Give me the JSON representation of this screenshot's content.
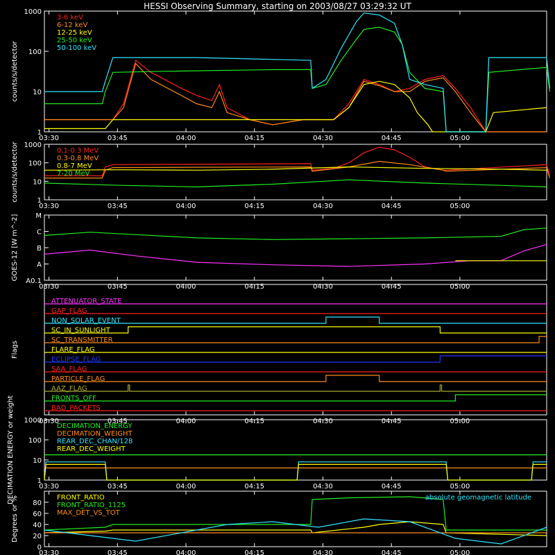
{
  "title": "HESSI Observing Summary, starting on 2003/08/27 03:29:32 UT",
  "time_ticks": [
    "03:30",
    "03:45",
    "04:00",
    "04:15",
    "04:30",
    "04:45",
    "05:00"
  ],
  "colors": {
    "bg": "#000000",
    "axis": "#ffffff",
    "red": "#ff2020",
    "orange": "#ff8c1a",
    "yellow": "#ffff00",
    "green": "#22ee22",
    "cyan": "#33e6ff",
    "magenta": "#ff33ff",
    "blue": "#2233ff",
    "olive": "#aaaa33"
  },
  "chart_data": [
    {
      "id": "panel1",
      "type": "line",
      "ylabel": "counts/s/detector",
      "yscale": "log",
      "ylim": [
        1,
        1000
      ],
      "yticks": [
        "1",
        "10",
        "100",
        "1000"
      ],
      "legend_placement": "top-left",
      "series": [
        {
          "name": "3-6 keV",
          "color": "red",
          "x": [
            0,
            15,
            25,
            45,
            52,
            60,
            70,
            90,
            100,
            110,
            115,
            120,
            135,
            150,
            170,
            175,
            190,
            200,
            210,
            220,
            230,
            240,
            250,
            262,
            270,
            280,
            290,
            300,
            310,
            320,
            330
          ],
          "y": [
            2,
            2,
            2,
            2,
            5,
            60,
            30,
            12,
            8,
            6,
            15,
            4,
            2,
            1.5,
            2,
            2,
            2,
            5,
            20,
            15,
            10,
            12,
            20,
            25,
            12,
            4,
            1,
            1,
            1,
            1,
            1
          ]
        },
        {
          "name": "6-12 keV",
          "color": "orange",
          "x": [
            0,
            15,
            25,
            45,
            52,
            60,
            70,
            90,
            100,
            110,
            115,
            120,
            135,
            150,
            170,
            175,
            190,
            200,
            210,
            220,
            230,
            240,
            250,
            262,
            270,
            280,
            290,
            300,
            310,
            320,
            330
          ],
          "y": [
            2,
            2,
            2,
            2,
            4,
            50,
            20,
            8,
            5,
            4,
            10,
            3,
            2,
            1.5,
            2,
            2,
            2,
            4,
            18,
            14,
            10,
            10,
            18,
            22,
            10,
            3,
            1,
            1,
            1,
            1,
            1
          ]
        },
        {
          "name": "12-25 keV",
          "color": "yellow",
          "x": [
            0,
            40,
            45,
            170,
            175,
            190,
            200,
            210,
            220,
            230,
            240,
            245,
            252,
            255,
            290,
            295,
            330
          ],
          "y": [
            1.2,
            1.2,
            2,
            2,
            2,
            2,
            4,
            15,
            18,
            15,
            7,
            3,
            1.5,
            1,
            1,
            3,
            4
          ]
        },
        {
          "name": "25-50 keV",
          "color": "green",
          "x": [
            0,
            38,
            40,
            45,
            80,
            150,
            175,
            176,
            185,
            195,
            205,
            210,
            220,
            230,
            235,
            240,
            250,
            262,
            264,
            290,
            292,
            330,
            332
          ],
          "y": [
            5,
            5,
            10,
            30,
            32,
            35,
            35,
            12,
            15,
            60,
            200,
            350,
            400,
            300,
            150,
            30,
            12,
            10,
            1,
            1,
            30,
            40,
            10
          ]
        },
        {
          "name": "50-100 keV",
          "color": "cyan",
          "x": [
            0,
            38,
            40,
            45,
            100,
            175,
            176,
            185,
            195,
            205,
            210,
            220,
            230,
            235,
            240,
            250,
            262,
            264,
            290,
            292,
            330,
            332
          ],
          "y": [
            10,
            10,
            18,
            70,
            70,
            60,
            12,
            20,
            120,
            550,
            900,
            800,
            500,
            150,
            20,
            15,
            12,
            1,
            1,
            70,
            70,
            12
          ]
        }
      ]
    },
    {
      "id": "panel2",
      "type": "line",
      "ylabel": "counts/s/detector",
      "yscale": "log",
      "ylim": [
        1,
        1000
      ],
      "yticks": [
        "1",
        "10",
        "100",
        "1000"
      ],
      "legend_placement": "top-left",
      "series": [
        {
          "name": "0.1-0.3 MeV",
          "color": "red",
          "x": [
            0,
            38,
            40,
            45,
            175,
            176,
            190,
            200,
            210,
            220,
            230,
            240,
            250,
            262,
            264,
            330,
            332
          ],
          "y": [
            20,
            20,
            60,
            80,
            90,
            40,
            50,
            100,
            350,
            700,
            500,
            200,
            60,
            40,
            40,
            80,
            20
          ]
        },
        {
          "name": "0.3-0.8 MeV",
          "color": "orange",
          "x": [
            0,
            38,
            40,
            45,
            175,
            176,
            200,
            220,
            240,
            262,
            264,
            330,
            332
          ],
          "y": [
            15,
            15,
            40,
            55,
            60,
            35,
            60,
            120,
            80,
            40,
            35,
            55,
            15
          ]
        },
        {
          "name": "0.8-7 MeV",
          "color": "yellow",
          "x": [
            0,
            50,
            100,
            150,
            200,
            250,
            300,
            330
          ],
          "y": [
            40,
            42,
            40,
            45,
            60,
            50,
            45,
            40
          ]
        },
        {
          "name": "7-20 MeV",
          "color": "green",
          "x": [
            0,
            50,
            100,
            150,
            200,
            250,
            300,
            330
          ],
          "y": [
            8,
            6,
            5,
            7,
            12,
            8,
            6,
            5
          ]
        }
      ]
    },
    {
      "id": "panel3",
      "type": "line",
      "ylabel": "GOES-12 [W m^-2]",
      "ylim_levels": [
        0,
        4
      ],
      "yticks": [
        "A0.1",
        "A",
        "B",
        "C",
        "M"
      ],
      "series": [
        {
          "name": "",
          "color": "green",
          "x": [
            0,
            30,
            60,
            100,
            150,
            200,
            250,
            300,
            315,
            330
          ],
          "y": [
            2.75,
            2.95,
            2.8,
            2.6,
            2.5,
            2.55,
            2.6,
            2.7,
            3.1,
            3.2
          ]
        },
        {
          "name": "",
          "color": "magenta",
          "x": [
            0,
            30,
            60,
            100,
            150,
            200,
            250,
            280,
            300,
            315,
            330
          ],
          "y": [
            1.6,
            1.85,
            1.5,
            1.1,
            0.95,
            0.85,
            1.0,
            1.2,
            1.2,
            1.8,
            2.2
          ]
        },
        {
          "name": "",
          "color": "yellow",
          "x": [
            270,
            330
          ],
          "y": [
            1.2,
            1.2
          ]
        }
      ]
    },
    {
      "id": "panel4",
      "type": "flags",
      "ylabel": "Flags",
      "flags": [
        {
          "name": "ATTENUATOR_STATE",
          "color": "magenta",
          "transitions": []
        },
        {
          "name": "GAP_FLAG",
          "color": "red",
          "transitions": []
        },
        {
          "name": "NON_SOLAR_EVENT",
          "color": "cyan",
          "transitions": [
            [
              185,
              1
            ],
            [
              220,
              0
            ]
          ]
        },
        {
          "name": "SC_IN_SUNLIGHT",
          "color": "yellow",
          "transitions": [
            [
              55,
              1
            ],
            [
              260,
              0
            ]
          ]
        },
        {
          "name": "SC_TRANSMITTER",
          "color": "orange",
          "transitions": [
            [
              325,
              1
            ]
          ]
        },
        {
          "name": "FLARE_FLAG",
          "color": "yellow",
          "transitions": []
        },
        {
          "name": "ECLIPSE_FLAG",
          "color": "blue",
          "transitions": [
            [
              55,
              0
            ],
            [
              260,
              1
            ]
          ]
        },
        {
          "name": "SAA_FLAG",
          "color": "red",
          "transitions": []
        },
        {
          "name": "PARTICLE_FLAG",
          "color": "orange",
          "transitions": [
            [
              185,
              1
            ],
            [
              220,
              0
            ]
          ]
        },
        {
          "name": "AAZ_FLAG",
          "color": "olive",
          "transitions": [
            [
              55,
              1
            ],
            [
              56,
              0
            ],
            [
              260,
              1
            ],
            [
              261,
              0
            ]
          ]
        },
        {
          "name": "FRONTS_OFF",
          "color": "green",
          "transitions": [
            [
              40,
              0
            ],
            [
              270,
              1
            ]
          ]
        },
        {
          "name": "BAD_PACKETS",
          "color": "red",
          "transitions": []
        }
      ]
    },
    {
      "id": "panel5",
      "type": "line",
      "ylabel": "DECIMATION ENERGY or weight",
      "yscale": "log",
      "ylim": [
        1,
        1000
      ],
      "yticks": [
        "1",
        "10",
        "100",
        "1000"
      ],
      "legend_placement": "top-left",
      "series": [
        {
          "name": "DECIMATION_ENERGY",
          "color": "green",
          "x": [
            0,
            330
          ],
          "y": [
            18,
            18
          ]
        },
        {
          "name": "DECIMATION_WEIGHT",
          "color": "orange",
          "x": [
            0,
            330
          ],
          "y": [
            4,
            4
          ]
        },
        {
          "name": "REAR_DEC_CHAN/128",
          "color": "cyan",
          "x": [
            0,
            1,
            40,
            41,
            166,
            167,
            264,
            265,
            320,
            321,
            330
          ],
          "y": [
            1,
            8,
            8,
            1,
            1,
            8,
            8,
            1,
            1,
            8,
            8
          ]
        },
        {
          "name": "REAR_DEC_WEIGHT",
          "color": "yellow",
          "x": [
            0,
            1,
            40,
            41,
            166,
            167,
            264,
            265,
            320,
            321,
            330
          ],
          "y": [
            1,
            6,
            6,
            1,
            1,
            6,
            6,
            1,
            1,
            6,
            6
          ]
        }
      ]
    },
    {
      "id": "panel6",
      "type": "line",
      "ylabel": "Degrees or %",
      "ylim": [
        0,
        100
      ],
      "yticks": [
        "0",
        "20",
        "40",
        "60",
        "80"
      ],
      "legend_placement": "top-left",
      "annotation": "absolute geomagnetic latitude",
      "series": [
        {
          "name": "FRONT_RATIO",
          "color": "yellow",
          "x": [
            0,
            40,
            45,
            175,
            176,
            210,
            220,
            240,
            262,
            264,
            330
          ],
          "y": [
            25,
            28,
            30,
            30,
            25,
            35,
            40,
            45,
            40,
            25,
            20
          ]
        },
        {
          "name": "FRONT_RATIO_1125",
          "color": "green",
          "x": [
            0,
            40,
            45,
            175,
            176,
            200,
            240,
            262,
            264,
            330
          ],
          "y": [
            30,
            35,
            40,
            40,
            85,
            88,
            90,
            85,
            30,
            30
          ]
        },
        {
          "name": "MAX_DET_VS_TOT",
          "color": "orange",
          "x": [
            0,
            330
          ],
          "y": [
            25,
            25
          ]
        },
        {
          "name": "",
          "color": "cyan",
          "x": [
            0,
            30,
            60,
            90,
            120,
            150,
            180,
            210,
            240,
            270,
            300,
            330
          ],
          "y": [
            30,
            20,
            10,
            25,
            40,
            45,
            35,
            50,
            45,
            15,
            5,
            35
          ]
        }
      ]
    }
  ]
}
